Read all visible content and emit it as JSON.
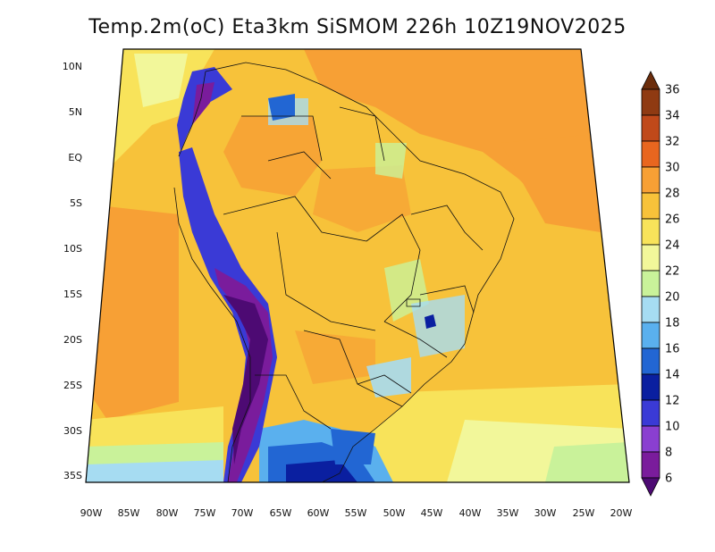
{
  "title": "Temp.2m(oC) Eta3km SiSMOM 226h 10Z19NOV2025",
  "map": {
    "lat_labels": [
      "10N",
      "5N",
      "EQ",
      "5S",
      "10S",
      "15S",
      "20S",
      "25S",
      "30S",
      "35S"
    ],
    "lon_labels": [
      "90W",
      "85W",
      "80W",
      "75W",
      "70W",
      "65W",
      "60W",
      "55W",
      "50W",
      "45W",
      "40W",
      "35W",
      "30W",
      "25W",
      "20W"
    ]
  },
  "colorbar": {
    "labels": [
      "36",
      "34",
      "32",
      "30",
      "28",
      "26",
      "24",
      "22",
      "20",
      "18",
      "16",
      "14",
      "12",
      "10",
      "8",
      "6"
    ],
    "colors": [
      "#6b2d0c",
      "#8f3a12",
      "#c0491a",
      "#e8661f",
      "#f7a035",
      "#f7c23a",
      "#f8e35a",
      "#f2f79a",
      "#c9f29a",
      "#a6dcf2",
      "#5ab0ee",
      "#2266d3",
      "#0a1fa0",
      "#3a3ad6",
      "#8a3fd0",
      "#7a1c9c",
      "#4d0a73"
    ]
  }
}
